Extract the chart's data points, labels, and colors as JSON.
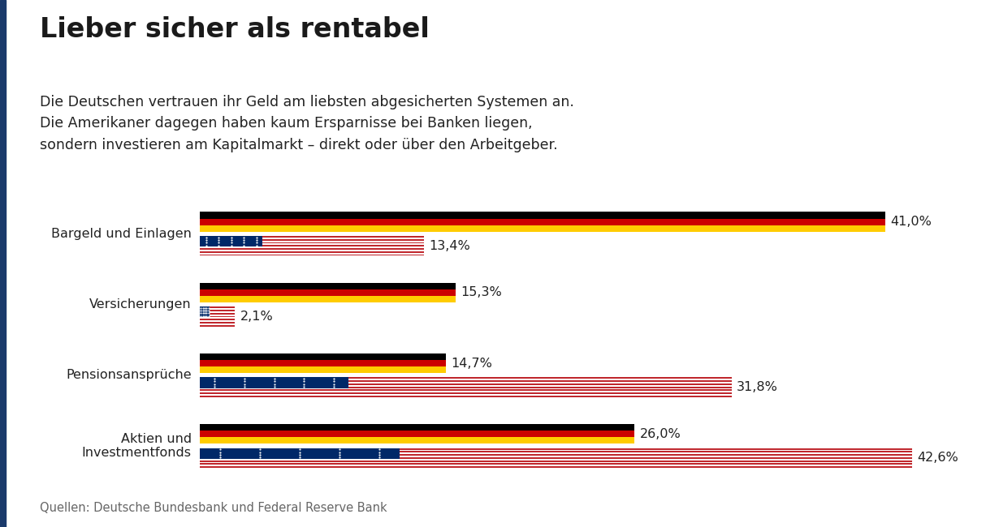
{
  "title": "Lieber sicher als rentabel",
  "subtitle": "Die Deutschen vertrauen ihr Geld am liebsten abgesicherten Systemen an.\nDie Amerikaner dagegen haben kaum Ersparnisse bei Banken liegen,\nsondern investieren am Kapitalmarkt – direkt oder über den Arbeitgeber.",
  "source": "Quellen: Deutsche Bundesbank und Federal Reserve Bank",
  "categories": [
    "Bargeld und Einlagen",
    "Versicherungen",
    "Pensionsansprüche",
    "Aktien und\nInvestmentfonds"
  ],
  "de_values": [
    41.0,
    15.3,
    14.7,
    26.0
  ],
  "us_values": [
    13.4,
    2.1,
    31.8,
    42.6
  ],
  "de_labels": [
    "41,0%",
    "15,3%",
    "14,7%",
    "26,0%"
  ],
  "us_labels": [
    "13,4%",
    "2,1%",
    "31,8%",
    "42,6%"
  ],
  "max_value": 43.0,
  "background_color": "#ffffff",
  "title_color": "#1a1a1a",
  "text_color": "#222222",
  "source_color": "#666666",
  "accent_color": "#1a3a6b",
  "de_colors": [
    "#000000",
    "#CC0000",
    "#FFCC00"
  ],
  "us_stripe_red": "#C0272D",
  "us_stripe_white": "#FFFFFF",
  "us_canton_blue": "#002868"
}
